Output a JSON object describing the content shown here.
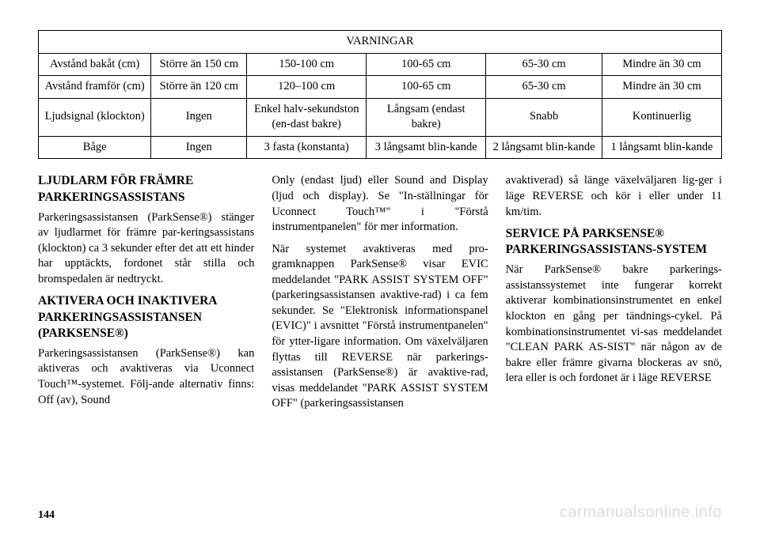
{
  "table": {
    "title": "VARNINGAR",
    "rows": [
      {
        "c1": "Avstånd bakåt (cm)",
        "c2": "Större än 150 cm",
        "c3": "150-100 cm",
        "c4": "100-65 cm",
        "c5": "65-30 cm",
        "c6": "Mindre än 30 cm"
      },
      {
        "c1": "Avstånd framför (cm)",
        "c2": "Större än 120 cm",
        "c3": "120–100 cm",
        "c4": "100-65 cm",
        "c5": "65-30 cm",
        "c6": "Mindre än 30 cm"
      },
      {
        "c1": "Ljudsignal (klockton)",
        "c2": "Ingen",
        "c3": "Enkel halv-sekundston (en-dast bakre)",
        "c4": "Långsam (endast bakre)",
        "c5": "Snabb",
        "c6": "Kontinuerlig"
      },
      {
        "c1": "Båge",
        "c2": "Ingen",
        "c3": "3 fasta (konstanta)",
        "c4": "3 långsamt blin-kande",
        "c5": "2 långsamt blin-kande",
        "c6": "1 långsamt blin-kande"
      }
    ]
  },
  "sections": {
    "h1": "LJUDLARM FÖR FRÄMRE PARKERINGSASSISTANS",
    "p1": "Parkeringsassistansen (ParkSense®) stänger av ljudlarmet för främre par-keringsassistans (klockton) ca 3 sekunder efter det att ett hinder har upptäckts, fordonet står stilla och bromspedalen är nedtryckt.",
    "h2": "AKTIVERA OCH INAKTIVERA PARKERINGSASSISTANSEN (PARKSENSE®)",
    "p2": "Parkeringsassistansen (ParkSense®) kan aktiveras och avaktiveras via Uconnect Touch™-systemet. Följ-ande alternativ finns: Off (av), Sound",
    "p3": "Only (endast ljud) eller Sound and Display (ljud och display). Se \"In-ställningar för Uconnect Touch™\" i \"Förstå instrumentpanelen\" för mer information.",
    "p4": "När systemet avaktiveras med pro-gramknappen ParkSense® visar EVIC meddelandet \"PARK ASSIST SYSTEM OFF\" (parkeringsassistansen avaktive-rad) i ca fem sekunder. Se \"Elektronisk informationspanel (EVIC)\" i avsnittet \"Förstå instrumentpanelen\" för ytter-ligare information. Om växelväljaren flyttas till REVERSE när parkerings-assistansen (ParkSense®) är avaktive-rad, visas meddelandet \"PARK ASSIST SYSTEM OFF\" (parkeringsassistansen",
    "p5": "avaktiverad) så länge växelväljaren lig-ger i läge REVERSE och kör i eller under 11 km/tim.",
    "h3": "SERVICE PÅ PARKSENSE® PARKERINGSASSISTANS-SYSTEM",
    "p6": "När ParkSense® bakre parkerings-assistanssystemet inte fungerar korrekt aktiverar kombinationsinstrumentet en enkel klockton en gång per tändnings-cykel. På kombinationsinstrumentet vi-sas meddelandet \"CLEAN PARK AS-SIST\" när någon av de bakre eller främre givarna blockeras av snö, lera eller is och fordonet är i läge REVERSE"
  },
  "pageNumber": "144",
  "watermark": "carmanualsonline.info"
}
